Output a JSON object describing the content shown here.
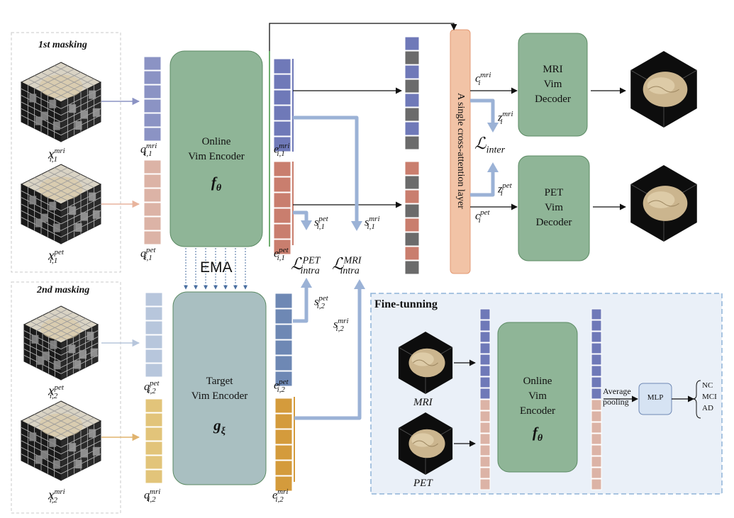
{
  "labels": {
    "first_masking_ord": "1st",
    "first_masking_word": "masking",
    "second_masking_ord": "2nd",
    "second_masking_word": "masking",
    "ema": "EMA",
    "fine_tuning": "Fine-tunning",
    "cross_attention": "A single cross-attention layer",
    "average_pooling_1": "Average",
    "average_pooling_2": "pooling",
    "mlp": "MLP",
    "mri": "MRI",
    "pet": "PET"
  },
  "blocks": {
    "online_encoder": {
      "line1": "Online",
      "line2": "Vim Encoder",
      "symbol": "f",
      "sub": "θ"
    },
    "target_encoder": {
      "line1": "Target",
      "line2": "Vim Encoder",
      "symbol": "g",
      "sub": "ξ"
    },
    "mri_decoder": {
      "line1": "MRI",
      "line2": "Vim",
      "line3": "Decoder"
    },
    "pet_decoder": {
      "line1": "PET",
      "line2": "Vim",
      "line3": "Decoder"
    },
    "ft_encoder": {
      "line1": "Online",
      "line2": "Vim",
      "line3": "Encoder",
      "symbol": "f",
      "sub": "θ"
    }
  },
  "variables": {
    "x_mri_1": {
      "base": "x",
      "sup": "mri",
      "sub": "i,1"
    },
    "x_pet_1": {
      "base": "x",
      "sup": "pet",
      "sub": "i,1"
    },
    "x_pet_2": {
      "base": "x",
      "sup": "pet",
      "sub": "i,2"
    },
    "x_mri_2": {
      "base": "x",
      "sup": "mri",
      "sub": "i,2"
    },
    "q_mri_1": {
      "base": "q",
      "sup": "mri",
      "sub": "i,1"
    },
    "q_pet_1": {
      "base": "q",
      "sup": "pet",
      "sub": "i,1"
    },
    "q_pet_2": {
      "base": "q",
      "sup": "pet",
      "sub": "i,2"
    },
    "q_mri_2": {
      "base": "q",
      "sup": "mri",
      "sub": "i,2"
    },
    "e_mri_1": {
      "base": "e",
      "sup": "mri",
      "sub": "i,1"
    },
    "e_pet_1": {
      "base": "e",
      "sup": "pet",
      "sub": "i,1"
    },
    "e_pet_2": {
      "base": "e",
      "sup": "pet",
      "sub": "i,2"
    },
    "e_mri_2": {
      "base": "e",
      "sup": "mri",
      "sub": "i,2"
    },
    "s_pet_1": {
      "base": "s",
      "sup": "pet",
      "sub": "i,1"
    },
    "s_mri_1": {
      "base": "s",
      "sup": "mri",
      "sub": "i,1"
    },
    "s_pet_2": {
      "base": "s",
      "sup": "pet",
      "sub": "i,2"
    },
    "s_mri_2": {
      "base": "s",
      "sup": "mri",
      "sub": "i,2"
    },
    "c_mri": {
      "base": "c",
      "sup": "mri",
      "sub": "i"
    },
    "c_pet": {
      "base": "c",
      "sup": "pet",
      "sub": "i"
    },
    "z_mri": {
      "base": "z",
      "sup": "mri",
      "sub": "i"
    },
    "z_pet": {
      "base": "z",
      "sup": "pet",
      "sub": "i"
    }
  },
  "losses": {
    "intra_pet": {
      "base": "ℒ",
      "sup": "PET",
      "sub": "intra"
    },
    "intra_mri": {
      "base": "ℒ",
      "sup": "MRI",
      "sub": "intra"
    },
    "inter": {
      "base": "ℒ",
      "sub": "inter"
    }
  },
  "classes": [
    "NC",
    "MCI",
    "AD"
  ],
  "colors": {
    "mri_token": "#8b93c4",
    "pet_token": "#dcb3a6",
    "mri_token_2": "#b7c6dc",
    "pet_token_2": "#e2c47a",
    "e_mri_1": "#6f79b8",
    "e_pet_1": "#c97e6e",
    "e_pet_2": "#6e88b4",
    "e_mri_2": "#d49b3c",
    "online_encoder": "#8fb597",
    "target_encoder": "#a9bfc1",
    "decoder": "#8fb597",
    "cross_attention": "#f2c3a6",
    "arrow_blue": "#9bb2d6",
    "finetune_bg": "#eaf0f8"
  }
}
